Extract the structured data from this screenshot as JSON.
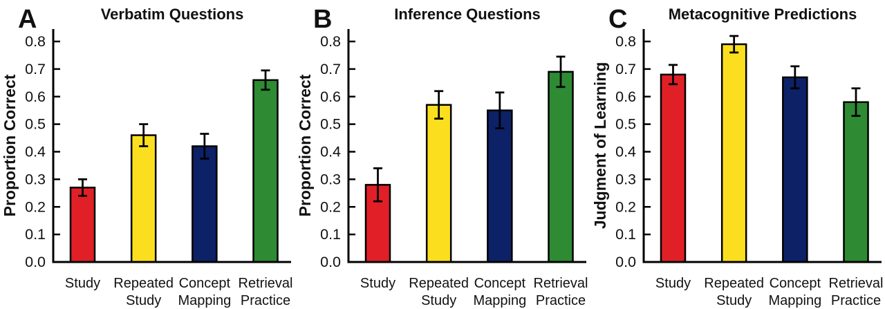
{
  "figure": {
    "background": "#ffffff",
    "text_color": "#111111",
    "axis_color": "#000000"
  },
  "chart_data": [
    {
      "type": "bar",
      "panel_letter": "A",
      "title": "Verbatim Questions",
      "xlabel": "",
      "ylabel": "Proportion Correct",
      "categories": [
        "Study",
        "Repeated Study",
        "Concept Mapping",
        "Retrieval Practice"
      ],
      "values": [
        0.27,
        0.46,
        0.42,
        0.66
      ],
      "error_bars": [
        0.03,
        0.04,
        0.045,
        0.035
      ],
      "bar_colors": [
        "#e11f26",
        "#fbdf1e",
        "#0d2167",
        "#2e8b33"
      ],
      "ylim": [
        0,
        0.85
      ],
      "yticks": [
        0,
        0.1,
        0.2,
        0.3,
        0.4,
        0.5,
        0.6,
        0.7,
        0.8
      ],
      "grid": false,
      "legend": "none"
    },
    {
      "type": "bar",
      "panel_letter": "B",
      "title": "Inference Questions",
      "xlabel": "",
      "ylabel": "Proportion Correct",
      "categories": [
        "Study",
        "Repeated Study",
        "Concept Mapping",
        "Retrieval Practice"
      ],
      "values": [
        0.28,
        0.57,
        0.55,
        0.69
      ],
      "error_bars": [
        0.06,
        0.05,
        0.065,
        0.055
      ],
      "bar_colors": [
        "#e11f26",
        "#fbdf1e",
        "#0d2167",
        "#2e8b33"
      ],
      "ylim": [
        0,
        0.85
      ],
      "yticks": [
        0,
        0.1,
        0.2,
        0.3,
        0.4,
        0.5,
        0.6,
        0.7,
        0.8
      ],
      "grid": false,
      "legend": "none"
    },
    {
      "type": "bar",
      "panel_letter": "C",
      "title": "Metacognitive Predictions",
      "xlabel": "",
      "ylabel": "Judgment of Learning",
      "categories": [
        "Study",
        "Repeated Study",
        "Concept Mapping",
        "Retrieval Practice"
      ],
      "values": [
        0.68,
        0.79,
        0.67,
        0.58
      ],
      "error_bars": [
        0.035,
        0.03,
        0.04,
        0.05
      ],
      "bar_colors": [
        "#e11f26",
        "#fbdf1e",
        "#0d2167",
        "#2e8b33"
      ],
      "ylim": [
        0,
        0.85
      ],
      "yticks": [
        0,
        0.1,
        0.2,
        0.3,
        0.4,
        0.5,
        0.6,
        0.7,
        0.8
      ],
      "grid": false,
      "legend": "none"
    }
  ]
}
